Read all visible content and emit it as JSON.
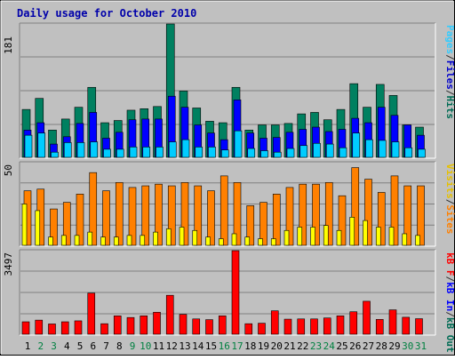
{
  "chart_data": {
    "type": "bar",
    "title": "Daily usage for October 2010",
    "categories": [
      "1",
      "2",
      "3",
      "4",
      "5",
      "6",
      "7",
      "8",
      "9",
      "10",
      "11",
      "12",
      "13",
      "14",
      "15",
      "16",
      "17",
      "18",
      "19",
      "20",
      "21",
      "22",
      "23",
      "24",
      "25",
      "26",
      "27",
      "28",
      "29",
      "30",
      "31"
    ],
    "weekend_days": [
      "2",
      "3",
      "9",
      "10",
      "16",
      "17",
      "23",
      "24",
      "30",
      "31"
    ],
    "panels": [
      {
        "max_label": "181",
        "ylim": [
          0,
          181
        ],
        "legend": [
          "Pages",
          "/",
          "Files",
          "/",
          "Hits"
        ],
        "legend_colors": [
          "#33ccff",
          "#333333",
          "#0000cc",
          "#333333",
          "#006b54"
        ],
        "series": [
          {
            "name": "Hits",
            "color": "#008060",
            "values": [
              65,
              80,
              37,
              52,
              68,
              95,
              47,
              50,
              64,
              66,
              69,
              181,
              90,
              67,
              49,
              47,
              95,
              37,
              44,
              44,
              46,
              59,
              61,
              51,
              65,
              100,
              68,
              99,
              84,
              44,
              41
            ]
          },
          {
            "name": "Files",
            "color": "#0000ff",
            "values": [
              37,
              47,
              18,
              28,
              46,
              61,
              26,
              34,
              51,
              52,
              52,
              83,
              68,
              44,
              33,
              24,
              78,
              33,
              26,
              27,
              34,
              38,
              41,
              35,
              38,
              53,
              47,
              68,
              57,
              44,
              30
            ]
          },
          {
            "name": "Pages",
            "color": "#00ccff",
            "values": [
              30,
              33,
              7,
              20,
              20,
              21,
              11,
              11,
              14,
              14,
              14,
              21,
              24,
              14,
              14,
              10,
              36,
              12,
              9,
              7,
              12,
              16,
              19,
              18,
              13,
              33,
              24,
              23,
              21,
              13,
              11
            ]
          }
        ]
      },
      {
        "max_label": "50",
        "ylim": [
          0,
          50
        ],
        "legend": [
          "Visits",
          "/",
          "Sites"
        ],
        "legend_colors": [
          "#e6c000",
          "#333333",
          "#ff8000"
        ],
        "series": [
          {
            "name": "Sites",
            "color": "#ff8000",
            "values": [
              33,
              34,
              22,
              26,
              31,
              44,
              33,
              38,
              35,
              36,
              37,
              36,
              38,
              36,
              33,
              42,
              38,
              24,
              26,
              31,
              35,
              37,
              37,
              38,
              30,
              47,
              40,
              32,
              42,
              36,
              36
            ]
          },
          {
            "name": "Visits",
            "color": "#ffff00",
            "values": [
              25,
              21,
              5,
              6,
              6,
              8,
              5,
              5,
              6,
              6,
              8,
              10,
              11,
              9,
              5,
              4,
              7,
              5,
              4,
              4,
              9,
              11,
              11,
              12,
              9,
              17,
              15,
              11,
              11,
              7,
              6
            ]
          }
        ]
      },
      {
        "max_label": "3497",
        "ylim": [
          0,
          3497
        ],
        "legend": [
          "kB F",
          "/",
          "kB In",
          "/",
          "kB Out"
        ],
        "legend_colors": [
          "#ff0000",
          "#333333",
          "#0000ff",
          "#333333",
          "#006b54"
        ],
        "series": [
          {
            "name": "kB F",
            "color": "#ff0000",
            "values": [
              520,
              590,
              430,
              520,
              560,
              1720,
              440,
              770,
              700,
              770,
              920,
              1630,
              830,
              640,
              610,
              770,
              3497,
              440,
              460,
              980,
              630,
              640,
              640,
              680,
              770,
              940,
              1380,
              620,
              1020,
              710,
              650
            ]
          }
        ]
      }
    ]
  }
}
